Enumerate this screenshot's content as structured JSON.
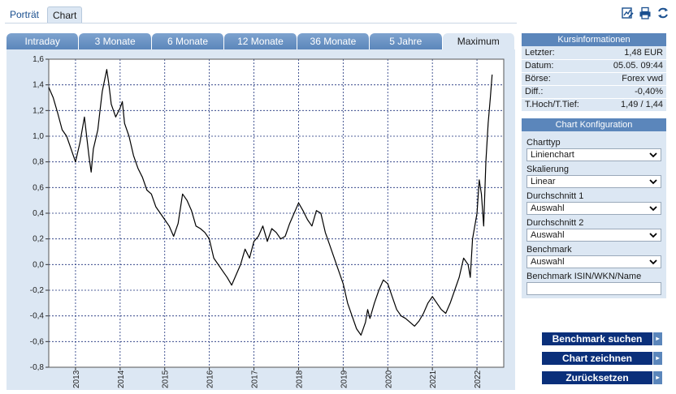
{
  "top_tabs": [
    {
      "label": "Porträt"
    },
    {
      "label": "Chart"
    }
  ],
  "top_icons": [
    "chart-edit-icon",
    "print-icon",
    "refresh-icon"
  ],
  "period_tabs": [
    {
      "label": "Intraday"
    },
    {
      "label": "3 Monate"
    },
    {
      "label": "6 Monate"
    },
    {
      "label": "12 Monate"
    },
    {
      "label": "36 Monate"
    },
    {
      "label": "5 Jahre"
    },
    {
      "label": "Maximum"
    }
  ],
  "active_period": "Maximum",
  "kursinfo": {
    "title": "Kursinformationen",
    "rows": [
      {
        "label": "Letzter:",
        "value": "1,48 EUR"
      },
      {
        "label": "Datum:",
        "value": "05.05. 09:44"
      },
      {
        "label": "Börse:",
        "value": "Forex vwd"
      },
      {
        "label": "Diff.:",
        "value": "-0,40%"
      },
      {
        "label": "T.Hoch/T.Tief:",
        "value": "1,49 / 1,44"
      }
    ]
  },
  "config": {
    "title": "Chart Konfiguration",
    "charttyp_label": "Charttyp",
    "charttyp_value": "Linienchart",
    "skalierung_label": "Skalierung",
    "skalierung_value": "Linear",
    "d1_label": "Durchschnitt 1",
    "d1_value": "Auswahl",
    "d2_label": "Durchschnitt 2",
    "d2_value": "Auswahl",
    "bench_label": "Benchmark",
    "bench_value": "Auswahl",
    "isin_label": "Benchmark ISIN/WKN/Name",
    "isin_value": ""
  },
  "buttons": {
    "benchmark_suchen": "Benchmark suchen",
    "chart_zeichnen": "Chart zeichnen",
    "zuruecksetzen": "Zurücksetzen"
  },
  "colors": {
    "tab_blue": "#5b86bb",
    "panel_bg": "#dce7f3",
    "button_navy": "#0a2f7a",
    "line": "#000000"
  },
  "chart_data": {
    "type": "line",
    "title": "",
    "xlabel": "",
    "ylabel": "",
    "ylim": [
      -0.8,
      1.6
    ],
    "xlim": [
      2012.4,
      2022.6
    ],
    "yticks": [
      "1,6",
      "1,4",
      "1,2",
      "1,0",
      "0,8",
      "0,6",
      "0,4",
      "0,2",
      "0,0",
      "-0,2",
      "-0,4",
      "-0,6",
      "-0,8"
    ],
    "ytick_values": [
      1.6,
      1.4,
      1.2,
      1.0,
      0.8,
      0.6,
      0.4,
      0.2,
      0.0,
      -0.2,
      -0.4,
      -0.6,
      -0.8
    ],
    "xticks": [
      "2013",
      "2014",
      "2015",
      "2016",
      "2017",
      "2018",
      "2019",
      "2020",
      "2021",
      "2022"
    ],
    "xtick_values": [
      2013,
      2014,
      2015,
      2016,
      2017,
      2018,
      2019,
      2020,
      2021,
      2022
    ],
    "grid": true,
    "series": [
      {
        "x": [
          2012.4,
          2012.5,
          2012.6,
          2012.7,
          2012.8,
          2012.9,
          2013.0,
          2013.1,
          2013.2,
          2013.3,
          2013.35,
          2013.4,
          2013.5,
          2013.55,
          2013.6,
          2013.7,
          2013.75,
          2013.8,
          2013.9,
          2014.0,
          2014.05,
          2014.1,
          2014.2,
          2014.3,
          2014.4,
          2014.5,
          2014.6,
          2014.7,
          2014.8,
          2014.9,
          2015.0,
          2015.1,
          2015.2,
          2015.3,
          2015.4,
          2015.5,
          2015.6,
          2015.7,
          2015.8,
          2015.9,
          2016.0,
          2016.1,
          2016.2,
          2016.3,
          2016.4,
          2016.5,
          2016.6,
          2016.7,
          2016.8,
          2016.9,
          2017.0,
          2017.1,
          2017.2,
          2017.3,
          2017.4,
          2017.5,
          2017.6,
          2017.7,
          2017.8,
          2017.9,
          2018.0,
          2018.1,
          2018.2,
          2018.3,
          2018.4,
          2018.5,
          2018.6,
          2018.7,
          2018.8,
          2018.9,
          2019.0,
          2019.1,
          2019.2,
          2019.3,
          2019.4,
          2019.5,
          2019.55,
          2019.6,
          2019.7,
          2019.8,
          2019.9,
          2020.0,
          2020.1,
          2020.2,
          2020.3,
          2020.4,
          2020.5,
          2020.6,
          2020.7,
          2020.8,
          2020.9,
          2021.0,
          2021.1,
          2021.2,
          2021.3,
          2021.4,
          2021.5,
          2021.6,
          2021.7,
          2021.8,
          2021.85,
          2021.9,
          2022.0,
          2022.05,
          2022.1,
          2022.15,
          2022.2,
          2022.25,
          2022.3,
          2022.34
        ],
        "values": [
          1.38,
          1.3,
          1.18,
          1.05,
          1.0,
          0.9,
          0.8,
          0.95,
          1.15,
          0.85,
          0.72,
          0.9,
          1.05,
          1.2,
          1.35,
          1.52,
          1.4,
          1.25,
          1.15,
          1.22,
          1.27,
          1.1,
          1.0,
          0.85,
          0.75,
          0.68,
          0.58,
          0.55,
          0.45,
          0.4,
          0.35,
          0.3,
          0.22,
          0.32,
          0.55,
          0.5,
          0.42,
          0.3,
          0.28,
          0.25,
          0.2,
          0.05,
          0.0,
          -0.05,
          -0.1,
          -0.16,
          -0.08,
          0.0,
          0.12,
          0.05,
          0.18,
          0.22,
          0.3,
          0.18,
          0.28,
          0.25,
          0.2,
          0.22,
          0.32,
          0.4,
          0.48,
          0.42,
          0.35,
          0.3,
          0.42,
          0.4,
          0.25,
          0.15,
          0.05,
          -0.05,
          -0.15,
          -0.3,
          -0.4,
          -0.5,
          -0.55,
          -0.45,
          -0.35,
          -0.42,
          -0.3,
          -0.2,
          -0.12,
          -0.15,
          -0.25,
          -0.35,
          -0.4,
          -0.42,
          -0.45,
          -0.48,
          -0.44,
          -0.38,
          -0.3,
          -0.25,
          -0.3,
          -0.35,
          -0.38,
          -0.3,
          -0.2,
          -0.1,
          0.05,
          0.0,
          -0.1,
          0.2,
          0.4,
          0.66,
          0.55,
          0.3,
          0.8,
          1.1,
          1.3,
          1.48
        ]
      }
    ]
  }
}
